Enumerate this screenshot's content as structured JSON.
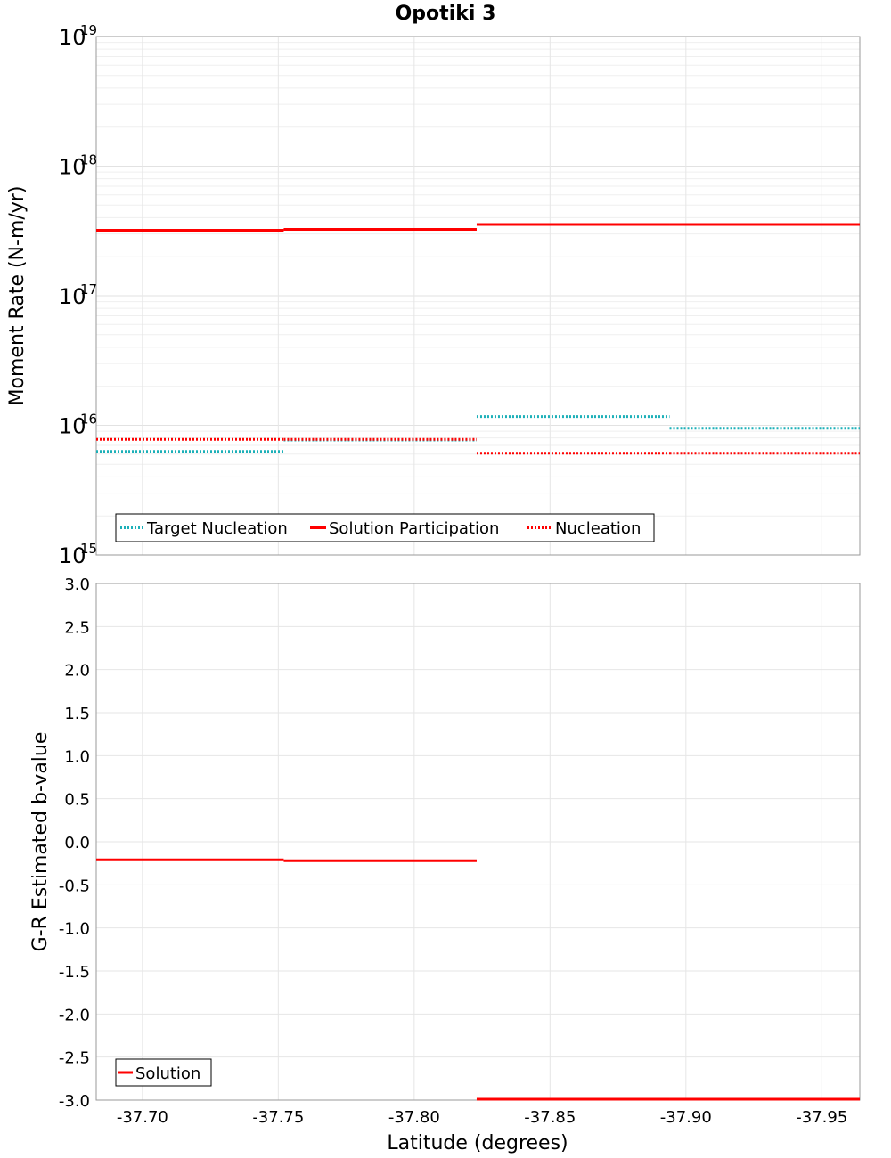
{
  "chart_data": [
    {
      "type": "line",
      "panel": "top",
      "title": "Opotiki 3",
      "ylabel": "Moment Rate (N-m/yr)",
      "yscale": "log",
      "ylim_exp": [
        15,
        19
      ],
      "y_tick_exponents": [
        "15",
        "16",
        "17",
        "18",
        "19"
      ],
      "y_tick_base": "10",
      "xlim": [
        -37.683,
        -37.964
      ],
      "series": [
        {
          "name": "Target Nucleation",
          "style": "dotted",
          "color": "#1cb0b8",
          "segments": [
            {
              "x0": -37.683,
              "x1": -37.752,
              "y": 6300000000000000.0
            },
            {
              "x0": -37.752,
              "x1": -37.823,
              "y": 7700000000000000.0
            },
            {
              "x0": -37.823,
              "x1": -37.894,
              "y": 1.17e+16
            },
            {
              "x0": -37.894,
              "x1": -37.964,
              "y": 9500000000000000.0
            }
          ]
        },
        {
          "name": "Solution Participation",
          "style": "solid",
          "color": "#ff0000",
          "segments": [
            {
              "x0": -37.683,
              "x1": -37.752,
              "y": 3.2e+17
            },
            {
              "x0": -37.752,
              "x1": -37.823,
              "y": 3.25e+17
            },
            {
              "x0": -37.823,
              "x1": -37.894,
              "y": 3.55e+17
            },
            {
              "x0": -37.894,
              "x1": -37.964,
              "y": 3.55e+17
            }
          ]
        },
        {
          "name": "Nucleation",
          "style": "dotted",
          "color": "#ff0000",
          "segments": [
            {
              "x0": -37.683,
              "x1": -37.752,
              "y": 7800000000000000.0
            },
            {
              "x0": -37.752,
              "x1": -37.823,
              "y": 7800000000000000.0
            },
            {
              "x0": -37.823,
              "x1": -37.894,
              "y": 6100000000000000.0
            },
            {
              "x0": -37.894,
              "x1": -37.964,
              "y": 6100000000000000.0
            }
          ]
        }
      ],
      "legend": [
        "Target Nucleation",
        "Solution Participation",
        "Nucleation"
      ],
      "legend_position": "bottom-left"
    },
    {
      "type": "line",
      "panel": "bottom",
      "xlabel": "Latitude (degrees)",
      "ylabel": "G-R Estimated b-value",
      "ylim": [
        -3.0,
        3.0
      ],
      "y_ticks": [
        "3.0",
        "2.5",
        "2.0",
        "1.5",
        "1.0",
        "0.5",
        "0.0",
        "-0.5",
        "-1.0",
        "-1.5",
        "-2.0",
        "-2.5",
        "-3.0"
      ],
      "x_ticks": [
        "-37.70",
        "-37.75",
        "-37.80",
        "-37.85",
        "-37.90",
        "-37.95"
      ],
      "xlim": [
        -37.683,
        -37.964
      ],
      "series": [
        {
          "name": "Solution",
          "style": "solid",
          "color": "#ff0000",
          "segments": [
            {
              "x0": -37.683,
              "x1": -37.752,
              "y": -0.21
            },
            {
              "x0": -37.752,
              "x1": -37.823,
              "y": -0.22
            },
            {
              "x0": -37.823,
              "x1": -37.894,
              "y": -3.0
            },
            {
              "x0": -37.894,
              "x1": -37.964,
              "y": -3.0
            }
          ]
        }
      ],
      "legend": [
        "Solution"
      ],
      "legend_position": "bottom-left"
    }
  ]
}
